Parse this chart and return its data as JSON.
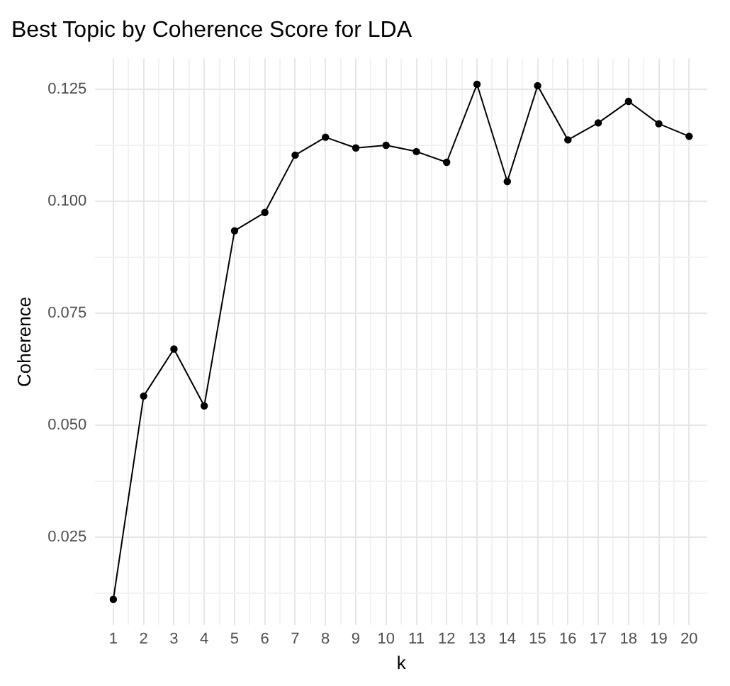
{
  "chart_data": {
    "type": "line",
    "title": "Best Topic by Coherence Score for LDA",
    "xlabel": "k",
    "ylabel": "Coherence",
    "x": [
      1,
      2,
      3,
      4,
      5,
      6,
      7,
      8,
      9,
      10,
      11,
      12,
      13,
      14,
      15,
      16,
      17,
      18,
      19,
      20
    ],
    "series": [
      {
        "color": "#000000",
        "values": [
          0.0111,
          0.0565,
          0.067,
          0.0543,
          0.0934,
          0.0975,
          0.1103,
          0.1143,
          0.1119,
          0.1125,
          0.1111,
          0.1087,
          0.1261,
          0.1044,
          0.1258,
          0.1137,
          0.1175,
          0.1223,
          0.1173,
          0.1145
        ]
      }
    ],
    "xlim": [
      0.4,
      20.6
    ],
    "xticks": [
      1,
      {
        "value": 1.5,
        "label": null
      },
      2,
      {
        "value": 2.5,
        "label": null
      },
      3,
      {
        "value": 3.5,
        "label": null
      },
      4,
      {
        "value": 4.5,
        "label": null
      },
      5,
      {
        "value": 5.5,
        "label": null
      },
      6,
      {
        "value": 6.5,
        "label": null
      },
      7,
      {
        "value": 7.5,
        "label": null
      },
      8,
      {
        "value": 8.5,
        "label": null
      },
      9,
      {
        "value": 9.5,
        "label": null
      },
      10,
      {
        "value": 10.5,
        "label": null
      },
      11,
      {
        "value": 11.5,
        "label": null
      },
      12,
      {
        "value": 12.5,
        "label": null
      },
      13,
      {
        "value": 13.5,
        "label": null
      },
      14,
      {
        "value": 14.5,
        "label": null
      },
      15,
      {
        "value": 15.5,
        "label": null
      },
      16,
      {
        "value": 16.5,
        "label": null
      },
      17,
      {
        "value": 17.5,
        "label": null
      },
      18,
      {
        "value": 18.5,
        "label": null
      },
      19,
      {
        "value": 19.5,
        "label": null
      },
      20
    ],
    "ylim": [
      0.0053,
      0.1319
    ],
    "yticks": [
      {
        "value": 0.0125,
        "label": null
      },
      {
        "value": 0.025,
        "label": "0.025"
      },
      {
        "value": 0.0375,
        "label": null
      },
      {
        "value": 0.05,
        "label": "0.050"
      },
      {
        "value": 0.0625,
        "label": null
      },
      {
        "value": 0.075,
        "label": "0.075"
      },
      {
        "value": 0.0875,
        "label": null
      },
      {
        "value": 0.1,
        "label": "0.100"
      },
      {
        "value": 0.1125,
        "label": null
      },
      {
        "value": 0.125,
        "label": "0.125"
      }
    ],
    "grid": true,
    "marker": "circle",
    "line_style": "solid",
    "legend": false
  }
}
